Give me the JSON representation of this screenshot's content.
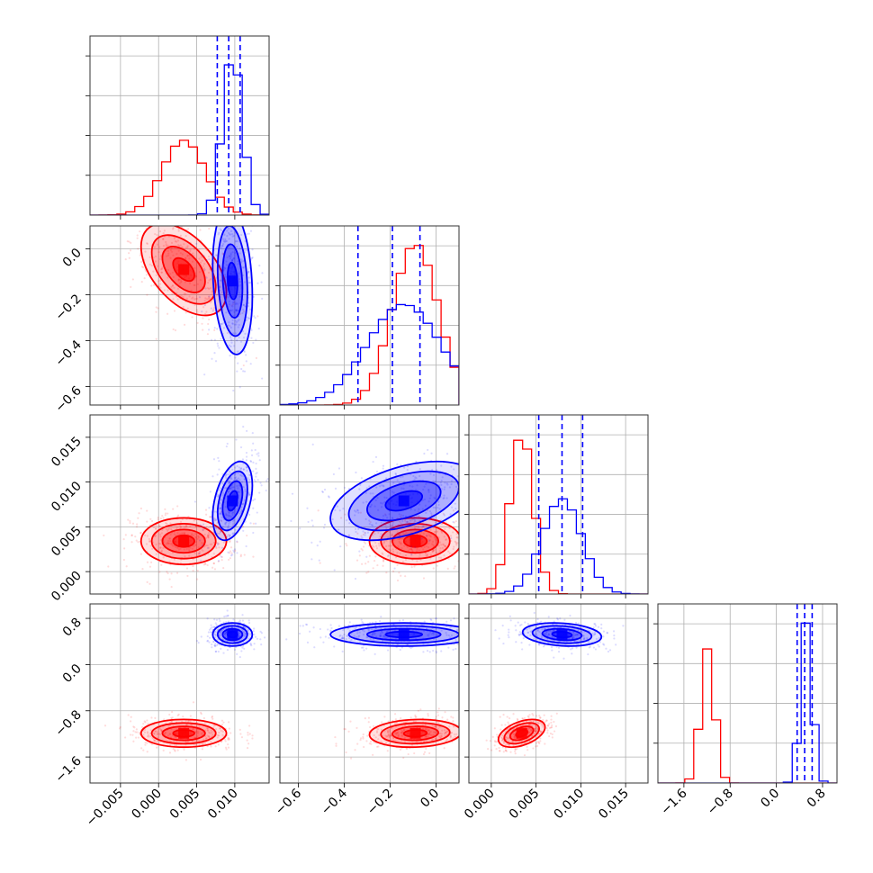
{
  "chart_data": {
    "type": "corner",
    "colors": {
      "series_a": "#ff0000",
      "series_b": "#0000ff"
    },
    "grid": true,
    "parameters": [
      {
        "range": [
          -0.009,
          0.0145
        ],
        "ticks": [
          -0.005,
          0.0,
          0.005,
          0.01
        ],
        "tick_labels": [
          "−0.005",
          "0.000",
          "0.005",
          "0.010"
        ]
      },
      {
        "range": [
          -0.68,
          0.1
        ],
        "ticks": [
          -0.6,
          -0.4,
          -0.2,
          0.0
        ],
        "tick_labels": [
          "−0.6",
          "−0.4",
          "−0.2",
          "0.0"
        ]
      },
      {
        "range": [
          -0.0025,
          0.0175
        ],
        "ticks": [
          0.0,
          0.005,
          0.01,
          0.015
        ],
        "tick_labels": [
          "0.000",
          "0.005",
          "0.010",
          "0.015"
        ]
      },
      {
        "range": [
          -2.05,
          1.05
        ],
        "ticks": [
          -1.6,
          -0.8,
          0.0,
          0.8
        ],
        "tick_labels": [
          "−1.6",
          "−0.8",
          "0.0",
          "0.8"
        ]
      }
    ],
    "histograms": [
      {
        "param": 0,
        "series_a": {
          "mean": 0.0033,
          "sd": 0.0028
        },
        "series_b": {
          "mean": 0.0097,
          "sd": 0.0013
        },
        "quantile_lines_b": [
          0.0077,
          0.0092,
          0.0107
        ]
      },
      {
        "param": 1,
        "series_a": {
          "mean": -0.09,
          "sd": 0.1
        },
        "series_b": {
          "mean": -0.14,
          "sd": 0.16
        },
        "quantile_lines_b": [
          -0.34,
          -0.19,
          -0.07
        ]
      },
      {
        "param": 2,
        "series_a": {
          "mean": 0.0034,
          "sd": 0.0013
        },
        "series_b": {
          "mean": 0.0079,
          "sd": 0.0022
        },
        "quantile_lines_b": [
          0.0053,
          0.0079,
          0.0102
        ]
      },
      {
        "param": 3,
        "series_a": {
          "mean": -1.19,
          "sd": 0.12
        },
        "series_b": {
          "mean": 0.52,
          "sd": 0.1
        },
        "quantile_lines_b": [
          0.36,
          0.49,
          0.62
        ]
      }
    ],
    "panels_2d": [
      {
        "x": 0,
        "y": 1,
        "series_a": {
          "center": [
            0.0033,
            -0.09
          ],
          "spread": [
            0.0028,
            0.1
          ],
          "corr": -0.5
        },
        "series_b": {
          "center": [
            0.0097,
            -0.14
          ],
          "spread": [
            0.0013,
            0.16
          ],
          "corr": -0.2
        }
      },
      {
        "x": 0,
        "y": 2,
        "series_a": {
          "center": [
            0.0033,
            0.0034
          ],
          "spread": [
            0.0028,
            0.0013
          ],
          "corr": 0.0
        },
        "series_b": {
          "center": [
            0.0097,
            0.0079
          ],
          "spread": [
            0.0013,
            0.0022
          ],
          "corr": 0.4
        }
      },
      {
        "x": 1,
        "y": 2,
        "series_a": {
          "center": [
            -0.09,
            0.0034
          ],
          "spread": [
            0.1,
            0.0013
          ],
          "corr": 0.0
        },
        "series_b": {
          "center": [
            -0.14,
            0.0079
          ],
          "spread": [
            0.16,
            0.0022
          ],
          "corr": 0.45
        }
      },
      {
        "x": 0,
        "y": 3,
        "series_a": {
          "center": [
            0.0033,
            -1.19
          ],
          "spread": [
            0.0028,
            0.12
          ],
          "corr": 0.0
        },
        "series_b": {
          "center": [
            0.0097,
            0.52
          ],
          "spread": [
            0.0013,
            0.1
          ],
          "corr": 0.0
        }
      },
      {
        "x": 1,
        "y": 3,
        "series_a": {
          "center": [
            -0.09,
            -1.19
          ],
          "spread": [
            0.1,
            0.12
          ],
          "corr": 0.1
        },
        "series_b": {
          "center": [
            -0.14,
            0.52
          ],
          "spread": [
            0.16,
            0.1
          ],
          "corr": 0.0
        }
      },
      {
        "x": 2,
        "y": 3,
        "series_a": {
          "center": [
            0.0034,
            -1.19
          ],
          "spread": [
            0.0013,
            0.12
          ],
          "corr": 0.45
        },
        "series_b": {
          "center": [
            0.0079,
            0.52
          ],
          "spread": [
            0.0022,
            0.1
          ],
          "corr": -0.2
        }
      }
    ]
  }
}
